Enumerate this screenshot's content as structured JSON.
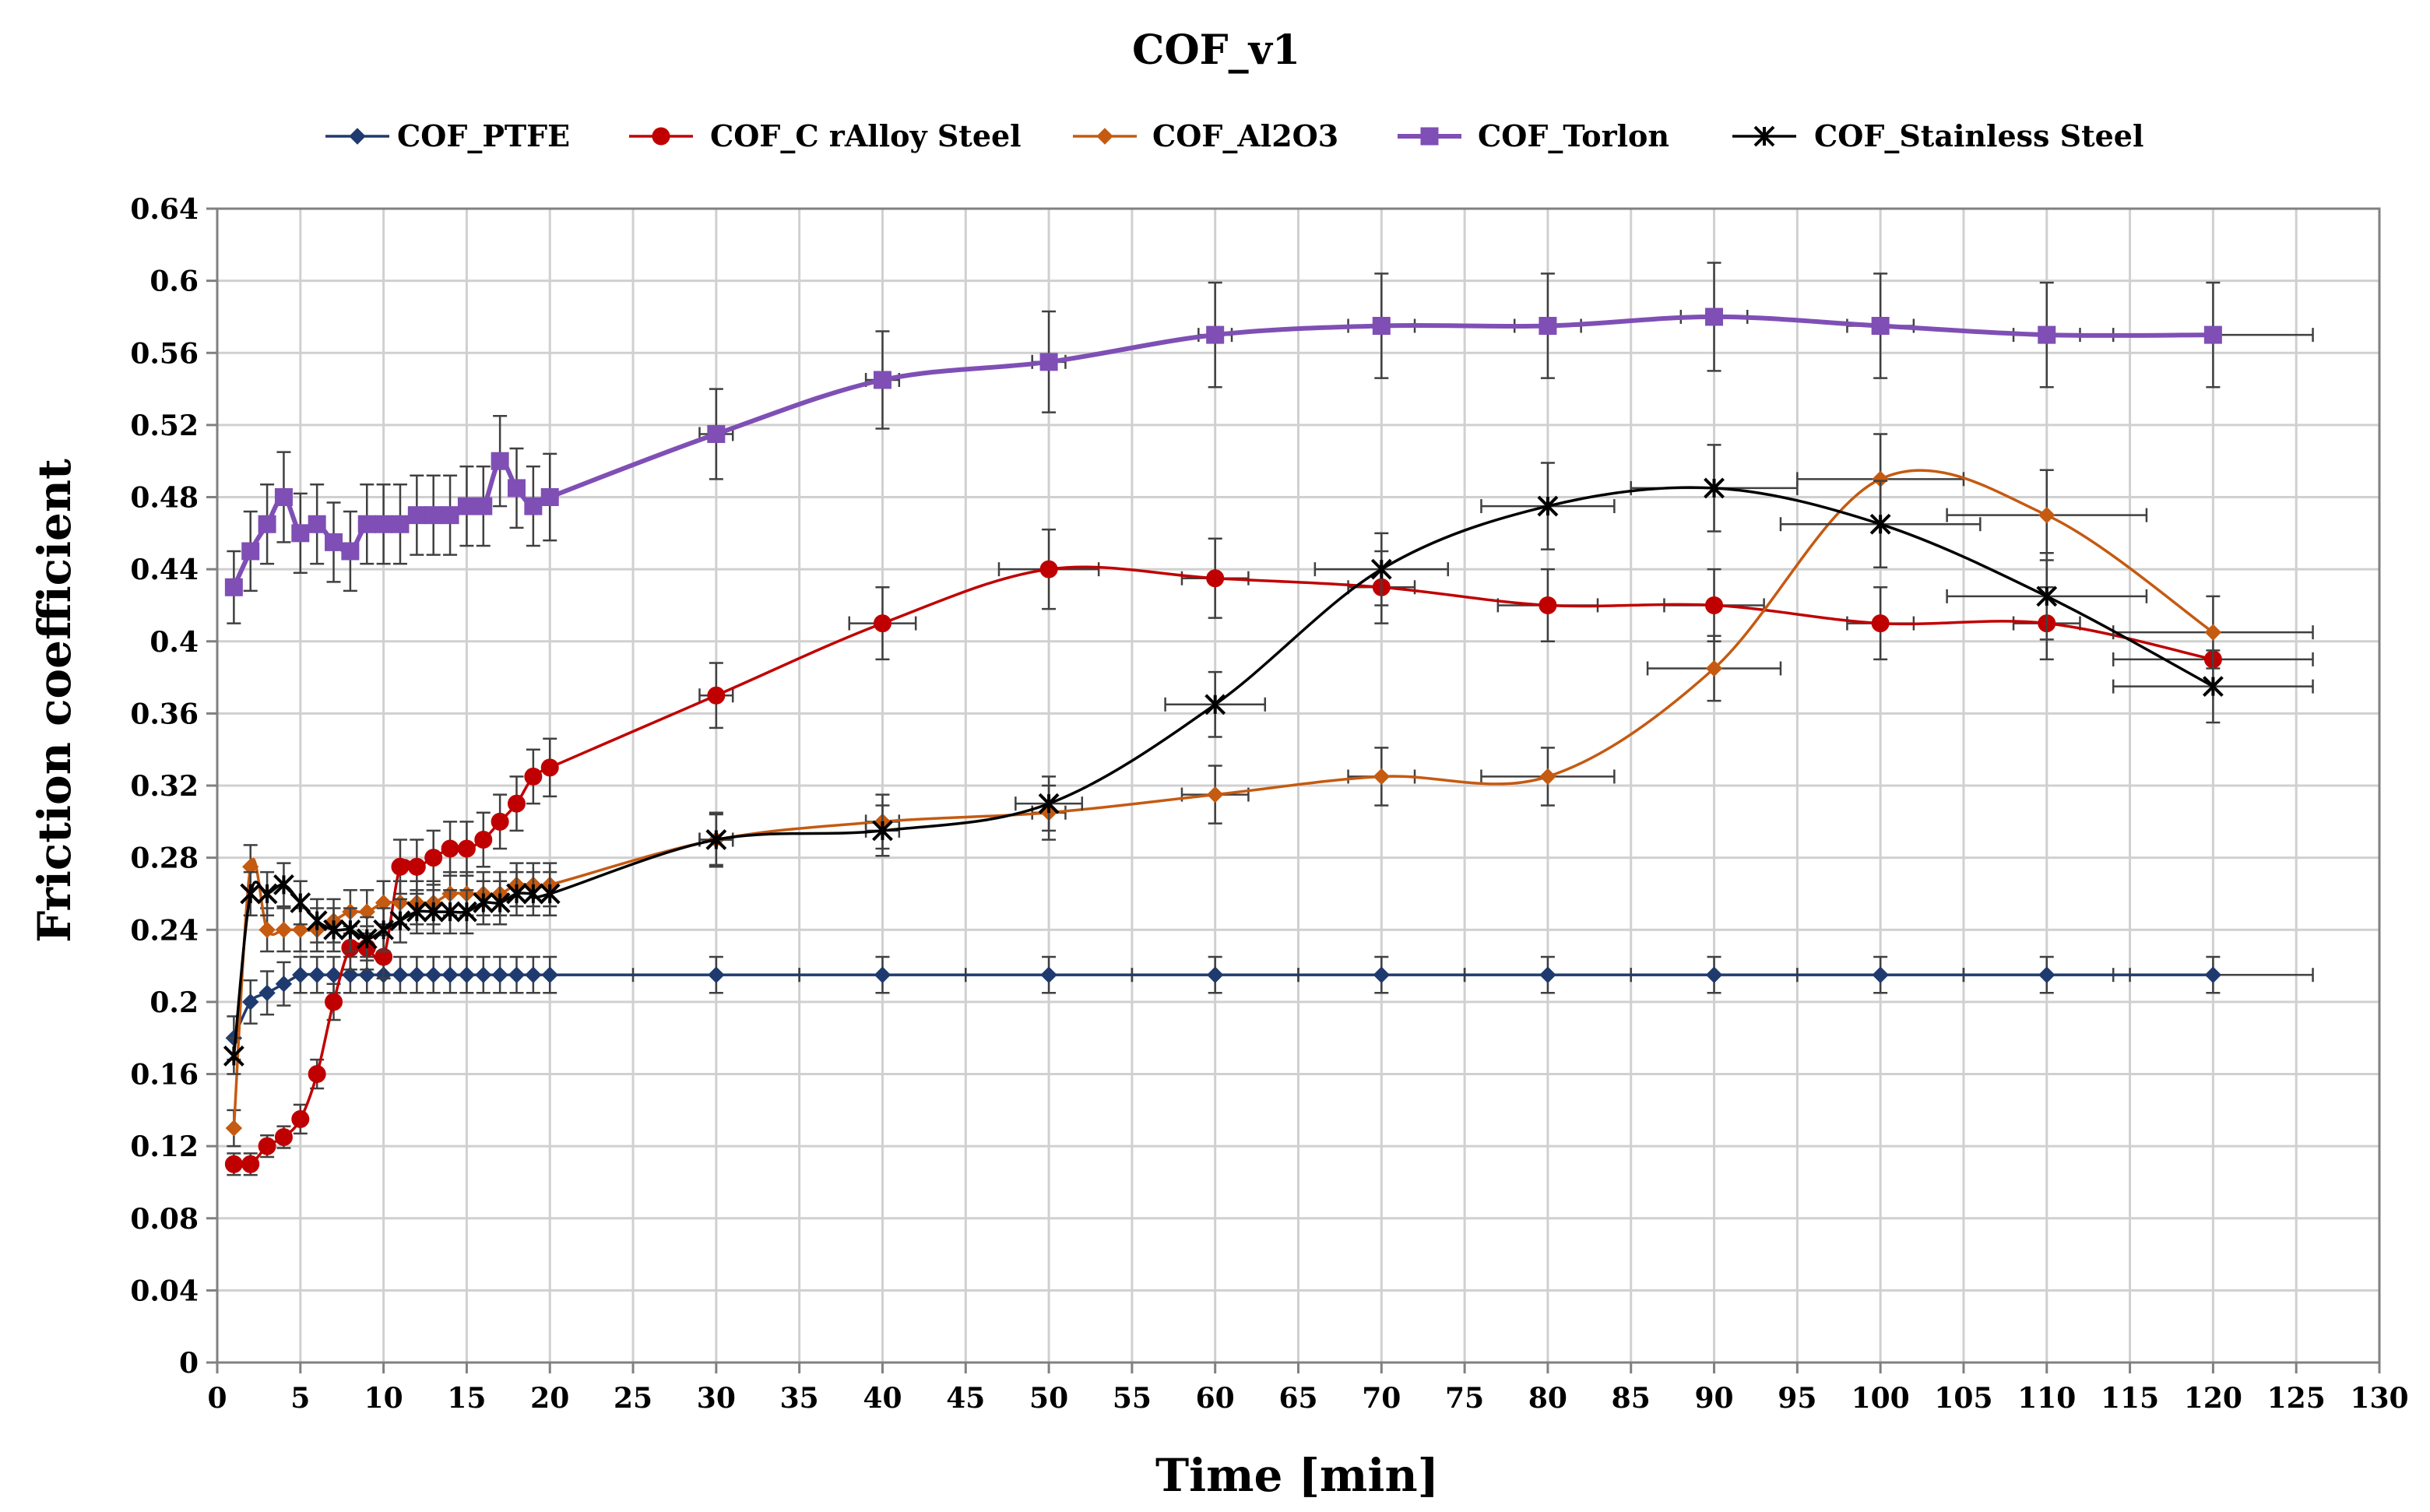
{
  "chart_data": {
    "type": "line",
    "title": "COF_v1",
    "xlabel": "Time [min]",
    "ylabel": "Friction coefficient",
    "xlim": [
      0,
      130
    ],
    "ylim": [
      0,
      0.64
    ],
    "x_ticks": [
      "0",
      "5",
      "10",
      "15",
      "20",
      "25",
      "30",
      "35",
      "40",
      "45",
      "50",
      "55",
      "60",
      "65",
      "70",
      "75",
      "80",
      "85",
      "90",
      "95",
      "100",
      "105",
      "110",
      "115",
      "120",
      "125",
      "130"
    ],
    "y_ticks": [
      "0",
      "0.04",
      "0.08",
      "0.12",
      "0.16",
      "0.2",
      "0.24",
      "0.28",
      "0.32",
      "0.36",
      "0.4",
      "0.44",
      "0.48",
      "0.52",
      "0.56",
      "0.6",
      "0.64"
    ],
    "grid": true,
    "legend_position": "top",
    "series": [
      {
        "name": "COF_PTFE",
        "color": "#1f3a6e",
        "marker": "diamond",
        "x": [
          1,
          2,
          3,
          4,
          5,
          6,
          7,
          8,
          9,
          10,
          11,
          12,
          13,
          14,
          15,
          16,
          17,
          18,
          19,
          20,
          30,
          40,
          50,
          60,
          70,
          80,
          90,
          100,
          110,
          120
        ],
        "y": [
          0.18,
          0.2,
          0.205,
          0.21,
          0.215,
          0.215,
          0.215,
          0.215,
          0.215,
          0.215,
          0.215,
          0.215,
          0.215,
          0.215,
          0.215,
          0.215,
          0.215,
          0.215,
          0.215,
          0.215,
          0.215,
          0.215,
          0.215,
          0.215,
          0.215,
          0.215,
          0.215,
          0.215,
          0.215,
          0.215
        ],
        "yerr": [
          0.012,
          0.012,
          0.012,
          0.012,
          0.01,
          0.01,
          0.01,
          0.01,
          0.01,
          0.01,
          0.01,
          0.01,
          0.01,
          0.01,
          0.01,
          0.01,
          0.01,
          0.01,
          0.01,
          0.01,
          0.01,
          0.01,
          0.01,
          0.01,
          0.01,
          0.01,
          0.01,
          0.01,
          0.01,
          0.01
        ],
        "xerr": [
          0,
          0,
          0,
          0,
          0,
          0,
          0,
          0,
          0,
          0,
          0,
          0,
          0,
          0,
          0,
          0,
          0,
          0,
          0,
          0,
          5,
          5,
          5,
          5,
          5,
          5,
          5,
          5,
          5,
          6
        ]
      },
      {
        "name": "COF_C rAlloy Steel",
        "color": "#c00000",
        "marker": "circle",
        "x": [
          1,
          2,
          3,
          4,
          5,
          6,
          7,
          8,
          9,
          10,
          11,
          12,
          13,
          14,
          15,
          16,
          17,
          18,
          19,
          20,
          30,
          40,
          50,
          60,
          70,
          80,
          90,
          100,
          110,
          120
        ],
        "y": [
          0.11,
          0.11,
          0.12,
          0.125,
          0.135,
          0.16,
          0.2,
          0.23,
          0.23,
          0.225,
          0.275,
          0.275,
          0.28,
          0.285,
          0.285,
          0.29,
          0.3,
          0.31,
          0.325,
          0.33,
          0.37,
          0.41,
          0.44,
          0.435,
          0.43,
          0.42,
          0.42,
          0.41,
          0.41,
          0.39
        ],
        "yerr": [
          0.006,
          0.006,
          0.006,
          0.006,
          0.008,
          0.008,
          0.01,
          0.012,
          0.012,
          0.012,
          0.015,
          0.015,
          0.015,
          0.015,
          0.015,
          0.015,
          0.015,
          0.015,
          0.015,
          0.016,
          0.018,
          0.02,
          0.022,
          0.022,
          0.02,
          0.02,
          0.02,
          0.02,
          0.02,
          0.0
        ],
        "xerr": [
          0,
          0,
          0,
          0,
          0,
          0,
          0,
          0,
          0,
          0,
          0,
          0,
          0,
          0,
          0,
          0,
          0,
          0,
          0,
          0,
          1,
          2,
          3,
          2,
          2,
          3,
          3,
          2,
          2,
          6
        ]
      },
      {
        "name": "COF_Al2O3",
        "color": "#c55a11",
        "marker": "diamond",
        "x": [
          1,
          2,
          3,
          4,
          5,
          6,
          7,
          8,
          9,
          10,
          11,
          12,
          13,
          14,
          15,
          16,
          17,
          18,
          19,
          20,
          30,
          40,
          50,
          60,
          70,
          80,
          90,
          100,
          110,
          120
        ],
        "y": [
          0.13,
          0.275,
          0.24,
          0.24,
          0.24,
          0.24,
          0.245,
          0.25,
          0.25,
          0.255,
          0.255,
          0.255,
          0.255,
          0.26,
          0.26,
          0.26,
          0.26,
          0.265,
          0.265,
          0.265,
          0.29,
          0.3,
          0.305,
          0.315,
          0.325,
          0.325,
          0.385,
          0.49,
          0.47,
          0.405
        ],
        "yerr": [
          0.01,
          0.012,
          0.012,
          0.012,
          0.012,
          0.012,
          0.012,
          0.012,
          0.012,
          0.012,
          0.012,
          0.012,
          0.012,
          0.012,
          0.012,
          0.012,
          0.012,
          0.012,
          0.012,
          0.012,
          0.014,
          0.015,
          0.015,
          0.016,
          0.016,
          0.016,
          0.018,
          0.025,
          0.025,
          0.02
        ],
        "xerr": [
          0,
          0,
          0,
          0,
          0,
          0,
          0,
          0,
          0,
          0,
          0,
          0,
          0,
          0,
          0,
          0,
          0,
          0,
          0,
          0,
          1,
          1,
          1,
          2,
          2,
          4,
          4,
          5,
          6,
          6
        ]
      },
      {
        "name": "COF_Torlon",
        "color": "#7f4fb5",
        "marker": "square",
        "x": [
          1,
          2,
          3,
          4,
          5,
          6,
          7,
          8,
          9,
          10,
          11,
          12,
          13,
          14,
          15,
          16,
          17,
          18,
          19,
          20,
          30,
          40,
          50,
          60,
          70,
          80,
          90,
          100,
          110,
          120
        ],
        "y": [
          0.43,
          0.45,
          0.465,
          0.48,
          0.46,
          0.465,
          0.455,
          0.45,
          0.465,
          0.465,
          0.465,
          0.47,
          0.47,
          0.47,
          0.475,
          0.475,
          0.5,
          0.485,
          0.475,
          0.48,
          0.515,
          0.545,
          0.555,
          0.57,
          0.575,
          0.575,
          0.58,
          0.575,
          0.57,
          0.57
        ],
        "yerr": [
          0.02,
          0.022,
          0.022,
          0.025,
          0.022,
          0.022,
          0.022,
          0.022,
          0.022,
          0.022,
          0.022,
          0.022,
          0.022,
          0.022,
          0.022,
          0.022,
          0.025,
          0.022,
          0.022,
          0.024,
          0.025,
          0.027,
          0.028,
          0.029,
          0.029,
          0.029,
          0.03,
          0.029,
          0.029,
          0.029
        ],
        "xerr": [
          0,
          0,
          0,
          0,
          0,
          0,
          0,
          0,
          0,
          0,
          0,
          0,
          0,
          0,
          0,
          0,
          0,
          0,
          0,
          0,
          1,
          1,
          1,
          1,
          2,
          2,
          2,
          2,
          2,
          6
        ]
      },
      {
        "name": "COF_Stainless Steel",
        "color": "#000000",
        "marker": "asterisk",
        "x": [
          1,
          2,
          3,
          4,
          5,
          6,
          7,
          8,
          9,
          10,
          11,
          12,
          13,
          14,
          15,
          16,
          17,
          18,
          19,
          20,
          30,
          40,
          50,
          60,
          70,
          80,
          90,
          100,
          110,
          120
        ],
        "y": [
          0.17,
          0.26,
          0.26,
          0.265,
          0.255,
          0.245,
          0.24,
          0.24,
          0.235,
          0.24,
          0.245,
          0.25,
          0.25,
          0.25,
          0.25,
          0.255,
          0.255,
          0.26,
          0.26,
          0.26,
          0.29,
          0.295,
          0.31,
          0.365,
          0.44,
          0.475,
          0.485,
          0.465,
          0.425,
          0.375
        ],
        "yerr": [
          0.01,
          0.012,
          0.012,
          0.012,
          0.012,
          0.012,
          0.012,
          0.012,
          0.012,
          0.012,
          0.012,
          0.012,
          0.012,
          0.012,
          0.012,
          0.012,
          0.012,
          0.012,
          0.012,
          0.012,
          0.015,
          0.014,
          0.015,
          0.018,
          0.02,
          0.024,
          0.024,
          0.024,
          0.024,
          0.02
        ],
        "xerr": [
          0,
          0,
          0,
          0,
          0,
          0,
          0,
          0,
          0,
          0,
          0,
          0,
          0,
          0,
          0,
          0,
          0,
          0,
          0,
          0,
          1,
          1,
          2,
          3,
          4,
          4,
          5,
          6,
          6,
          6
        ]
      }
    ]
  }
}
